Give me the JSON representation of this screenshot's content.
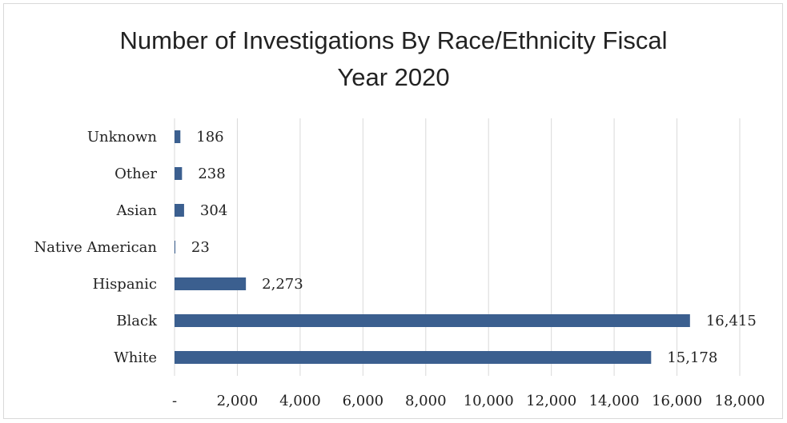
{
  "chart_data": {
    "type": "bar",
    "orientation": "horizontal",
    "title": "Number of Investigations By Race/Ethnicity Fiscal Year 2020",
    "title_lines": [
      "Number of Investigations By Race/Ethnicity Fiscal",
      "Year 2020"
    ],
    "categories": [
      "White",
      "Black",
      "Hispanic",
      "Native American",
      "Asian",
      "Other",
      "Unknown"
    ],
    "values": [
      15178,
      16415,
      2273,
      23,
      304,
      238,
      186
    ],
    "data_labels": [
      "15,178",
      "16,415",
      "2,273",
      "23",
      "304",
      "238",
      "186"
    ],
    "xlim": [
      0,
      18000
    ],
    "x_ticks": [
      0,
      2000,
      4000,
      6000,
      8000,
      10000,
      12000,
      14000,
      16000,
      18000
    ],
    "x_tick_labels": [
      "-",
      "2,000",
      "4,000",
      "6,000",
      "8,000",
      "10,000",
      "12,000",
      "14,000",
      "16,000",
      "18,000"
    ],
    "xlabel": "",
    "ylabel": "",
    "grid": "vertical",
    "legend": "none",
    "bar_color": "#3b5f8f",
    "grid_color": "#d9d9d9"
  }
}
